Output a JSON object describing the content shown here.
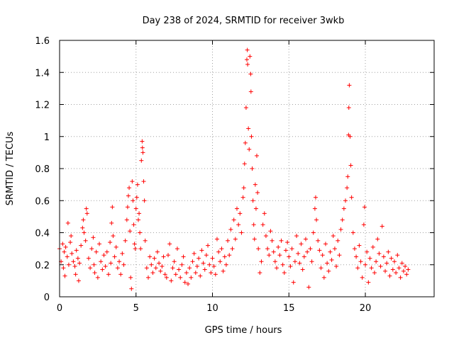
{
  "chart_data": {
    "type": "scatter",
    "title": "Day 238 of 2024, SRMTID for receiver 3wkb",
    "xlabel": "GPS time / hours",
    "ylabel": "SRMTID / TECUs",
    "xlim": [
      0,
      24.5
    ],
    "ylim": [
      0,
      1.6
    ],
    "x_ticks": [
      0,
      5,
      10,
      15,
      20
    ],
    "x_tick_labels": [
      "0",
      "5",
      "10",
      "15",
      "20"
    ],
    "y_ticks": [
      0,
      0.2,
      0.4,
      0.6,
      0.8,
      1.0,
      1.2,
      1.4,
      1.6
    ],
    "y_tick_labels": [
      "0",
      "0.2",
      "0.4",
      "0.6",
      "0.8",
      "1",
      "1.2",
      "1.4",
      "1.6"
    ],
    "grid": true,
    "marker": "+",
    "color": "#ff0000",
    "series": [
      {
        "name": "SRMTID",
        "points": [
          [
            0.0,
            0.3
          ],
          [
            0.1,
            0.22
          ],
          [
            0.2,
            0.33
          ],
          [
            0.25,
            0.18
          ],
          [
            0.3,
            0.28
          ],
          [
            0.35,
            0.13
          ],
          [
            0.4,
            0.31
          ],
          [
            0.5,
            0.25
          ],
          [
            0.55,
            0.46
          ],
          [
            0.6,
            0.2
          ],
          [
            0.7,
            0.34
          ],
          [
            0.75,
            0.38
          ],
          [
            0.8,
            0.27
          ],
          [
            0.9,
            0.22
          ],
          [
            1.0,
            0.19
          ],
          [
            1.05,
            0.14
          ],
          [
            1.1,
            0.29
          ],
          [
            1.2,
            0.24
          ],
          [
            1.25,
            0.1
          ],
          [
            1.3,
            0.21
          ],
          [
            1.4,
            0.32
          ],
          [
            1.5,
            0.43
          ],
          [
            1.55,
            0.48
          ],
          [
            1.6,
            0.4
          ],
          [
            1.7,
            0.35
          ],
          [
            1.75,
            0.55
          ],
          [
            1.8,
            0.52
          ],
          [
            1.9,
            0.24
          ],
          [
            2.0,
            0.18
          ],
          [
            2.1,
            0.3
          ],
          [
            2.2,
            0.37
          ],
          [
            2.25,
            0.2
          ],
          [
            2.3,
            0.15
          ],
          [
            2.4,
            0.28
          ],
          [
            2.5,
            0.12
          ],
          [
            2.6,
            0.33
          ],
          [
            2.7,
            0.22
          ],
          [
            2.8,
            0.17
          ],
          [
            2.9,
            0.26
          ],
          [
            3.0,
            0.19
          ],
          [
            3.1,
            0.28
          ],
          [
            3.2,
            0.14
          ],
          [
            3.3,
            0.34
          ],
          [
            3.35,
            0.21
          ],
          [
            3.4,
            0.46
          ],
          [
            3.45,
            0.56
          ],
          [
            3.5,
            0.38
          ],
          [
            3.6,
            0.25
          ],
          [
            3.7,
            0.31
          ],
          [
            3.8,
            0.18
          ],
          [
            3.9,
            0.22
          ],
          [
            4.0,
            0.14
          ],
          [
            4.1,
            0.27
          ],
          [
            4.2,
            0.2
          ],
          [
            4.3,
            0.35
          ],
          [
            4.4,
            0.48
          ],
          [
            4.45,
            0.56
          ],
          [
            4.5,
            0.63
          ],
          [
            4.55,
            0.68
          ],
          [
            4.6,
            0.41
          ],
          [
            4.65,
            0.12
          ],
          [
            4.7,
            0.05
          ],
          [
            4.75,
            0.72
          ],
          [
            4.8,
            0.6
          ],
          [
            4.85,
            0.45
          ],
          [
            4.9,
            0.33
          ],
          [
            4.95,
            0.3
          ],
          [
            5.0,
            0.55
          ],
          [
            5.05,
            0.62
          ],
          [
            5.1,
            0.7
          ],
          [
            5.15,
            0.48
          ],
          [
            5.2,
            0.52
          ],
          [
            5.25,
            0.4
          ],
          [
            5.3,
            0.3
          ],
          [
            5.35,
            0.85
          ],
          [
            5.4,
            0.97
          ],
          [
            5.42,
            0.93
          ],
          [
            5.45,
            0.9
          ],
          [
            5.5,
            0.72
          ],
          [
            5.55,
            0.6
          ],
          [
            5.6,
            0.35
          ],
          [
            5.7,
            0.18
          ],
          [
            5.8,
            0.12
          ],
          [
            5.9,
            0.25
          ],
          [
            6.0,
            0.2
          ],
          [
            6.1,
            0.15
          ],
          [
            6.2,
            0.24
          ],
          [
            6.3,
            0.18
          ],
          [
            6.4,
            0.28
          ],
          [
            6.5,
            0.21
          ],
          [
            6.6,
            0.16
          ],
          [
            6.7,
            0.19
          ],
          [
            6.8,
            0.25
          ],
          [
            6.9,
            0.14
          ],
          [
            7.0,
            0.12
          ],
          [
            7.1,
            0.26
          ],
          [
            7.2,
            0.33
          ],
          [
            7.3,
            0.1
          ],
          [
            7.4,
            0.18
          ],
          [
            7.5,
            0.22
          ],
          [
            7.6,
            0.14
          ],
          [
            7.7,
            0.3
          ],
          [
            7.8,
            0.17
          ],
          [
            7.9,
            0.12
          ],
          [
            8.0,
            0.2
          ],
          [
            8.1,
            0.25
          ],
          [
            8.2,
            0.09
          ],
          [
            8.3,
            0.15
          ],
          [
            8.4,
            0.08
          ],
          [
            8.5,
            0.18
          ],
          [
            8.6,
            0.12
          ],
          [
            8.7,
            0.22
          ],
          [
            8.8,
            0.27
          ],
          [
            8.9,
            0.15
          ],
          [
            9.0,
            0.19
          ],
          [
            9.1,
            0.24
          ],
          [
            9.2,
            0.13
          ],
          [
            9.3,
            0.29
          ],
          [
            9.4,
            0.21
          ],
          [
            9.5,
            0.17
          ],
          [
            9.6,
            0.26
          ],
          [
            9.7,
            0.32
          ],
          [
            9.8,
            0.2
          ],
          [
            9.9,
            0.15
          ],
          [
            10.0,
            0.24
          ],
          [
            10.1,
            0.19
          ],
          [
            10.2,
            0.14
          ],
          [
            10.3,
            0.36
          ],
          [
            10.4,
            0.28
          ],
          [
            10.5,
            0.22
          ],
          [
            10.6,
            0.3
          ],
          [
            10.7,
            0.16
          ],
          [
            10.8,
            0.25
          ],
          [
            10.9,
            0.2
          ],
          [
            11.0,
            0.35
          ],
          [
            11.1,
            0.26
          ],
          [
            11.2,
            0.42
          ],
          [
            11.3,
            0.3
          ],
          [
            11.4,
            0.48
          ],
          [
            11.5,
            0.36
          ],
          [
            11.6,
            0.55
          ],
          [
            11.7,
            0.45
          ],
          [
            11.8,
            0.52
          ],
          [
            11.9,
            0.4
          ],
          [
            12.0,
            0.62
          ],
          [
            12.05,
            0.68
          ],
          [
            12.1,
            0.83
          ],
          [
            12.15,
            0.96
          ],
          [
            12.2,
            1.18
          ],
          [
            12.25,
            1.48
          ],
          [
            12.28,
            1.54
          ],
          [
            12.3,
            1.45
          ],
          [
            12.35,
            1.05
          ],
          [
            12.4,
            0.92
          ],
          [
            12.45,
            1.5
          ],
          [
            12.5,
            1.39
          ],
          [
            12.52,
            1.28
          ],
          [
            12.55,
            1.0
          ],
          [
            12.6,
            0.8
          ],
          [
            12.65,
            0.6
          ],
          [
            12.7,
            0.45
          ],
          [
            12.75,
            0.36
          ],
          [
            12.8,
            0.7
          ],
          [
            12.85,
            0.55
          ],
          [
            12.9,
            0.88
          ],
          [
            12.95,
            0.65
          ],
          [
            13.0,
            0.3
          ],
          [
            13.1,
            0.15
          ],
          [
            13.2,
            0.22
          ],
          [
            13.3,
            0.45
          ],
          [
            13.4,
            0.52
          ],
          [
            13.5,
            0.38
          ],
          [
            13.6,
            0.3
          ],
          [
            13.7,
            0.26
          ],
          [
            13.8,
            0.41
          ],
          [
            13.9,
            0.35
          ],
          [
            14.0,
            0.28
          ],
          [
            14.1,
            0.22
          ],
          [
            14.2,
            0.18
          ],
          [
            14.3,
            0.31
          ],
          [
            14.4,
            0.26
          ],
          [
            14.5,
            0.35
          ],
          [
            14.6,
            0.2
          ],
          [
            14.7,
            0.15
          ],
          [
            14.8,
            0.29
          ],
          [
            14.9,
            0.34
          ],
          [
            15.0,
            0.25
          ],
          [
            15.1,
            0.19
          ],
          [
            15.2,
            0.3
          ],
          [
            15.3,
            0.09
          ],
          [
            15.4,
            0.22
          ],
          [
            15.5,
            0.38
          ],
          [
            15.6,
            0.27
          ],
          [
            15.7,
            0.21
          ],
          [
            15.8,
            0.33
          ],
          [
            15.9,
            0.17
          ],
          [
            16.0,
            0.25
          ],
          [
            16.1,
            0.36
          ],
          [
            16.2,
            0.28
          ],
          [
            16.3,
            0.06
          ],
          [
            16.4,
            0.3
          ],
          [
            16.5,
            0.22
          ],
          [
            16.6,
            0.4
          ],
          [
            16.7,
            0.55
          ],
          [
            16.75,
            0.62
          ],
          [
            16.8,
            0.48
          ],
          [
            16.9,
            0.35
          ],
          [
            17.0,
            0.29
          ],
          [
            17.1,
            0.18
          ],
          [
            17.2,
            0.26
          ],
          [
            17.3,
            0.12
          ],
          [
            17.4,
            0.33
          ],
          [
            17.5,
            0.21
          ],
          [
            17.6,
            0.16
          ],
          [
            17.7,
            0.28
          ],
          [
            17.8,
            0.23
          ],
          [
            17.9,
            0.38
          ],
          [
            18.0,
            0.3
          ],
          [
            18.1,
            0.19
          ],
          [
            18.2,
            0.35
          ],
          [
            18.3,
            0.26
          ],
          [
            18.4,
            0.42
          ],
          [
            18.5,
            0.48
          ],
          [
            18.6,
            0.55
          ],
          [
            18.7,
            0.6
          ],
          [
            18.8,
            0.68
          ],
          [
            18.85,
            0.75
          ],
          [
            18.9,
            1.01
          ],
          [
            18.92,
            1.18
          ],
          [
            18.95,
            1.32
          ],
          [
            19.0,
            1.0
          ],
          [
            19.05,
            0.82
          ],
          [
            19.1,
            0.62
          ],
          [
            19.2,
            0.4
          ],
          [
            19.3,
            0.3
          ],
          [
            19.4,
            0.25
          ],
          [
            19.5,
            0.18
          ],
          [
            19.6,
            0.32
          ],
          [
            19.7,
            0.22
          ],
          [
            19.8,
            0.12
          ],
          [
            19.9,
            0.45
          ],
          [
            19.95,
            0.56
          ],
          [
            20.0,
            0.2
          ],
          [
            20.1,
            0.28
          ],
          [
            20.2,
            0.09
          ],
          [
            20.3,
            0.24
          ],
          [
            20.4,
            0.18
          ],
          [
            20.5,
            0.31
          ],
          [
            20.6,
            0.15
          ],
          [
            20.7,
            0.22
          ],
          [
            20.8,
            0.36
          ],
          [
            20.9,
            0.27
          ],
          [
            21.0,
            0.19
          ],
          [
            21.1,
            0.44
          ],
          [
            21.2,
            0.25
          ],
          [
            21.3,
            0.16
          ],
          [
            21.4,
            0.21
          ],
          [
            21.5,
            0.28
          ],
          [
            21.6,
            0.13
          ],
          [
            21.7,
            0.24
          ],
          [
            21.8,
            0.17
          ],
          [
            21.9,
            0.22
          ],
          [
            22.0,
            0.15
          ],
          [
            22.1,
            0.26
          ],
          [
            22.2,
            0.18
          ],
          [
            22.3,
            0.12
          ],
          [
            22.4,
            0.21
          ],
          [
            22.5,
            0.16
          ],
          [
            22.6,
            0.19
          ],
          [
            22.7,
            0.14
          ],
          [
            22.8,
            0.17
          ]
        ]
      }
    ]
  }
}
